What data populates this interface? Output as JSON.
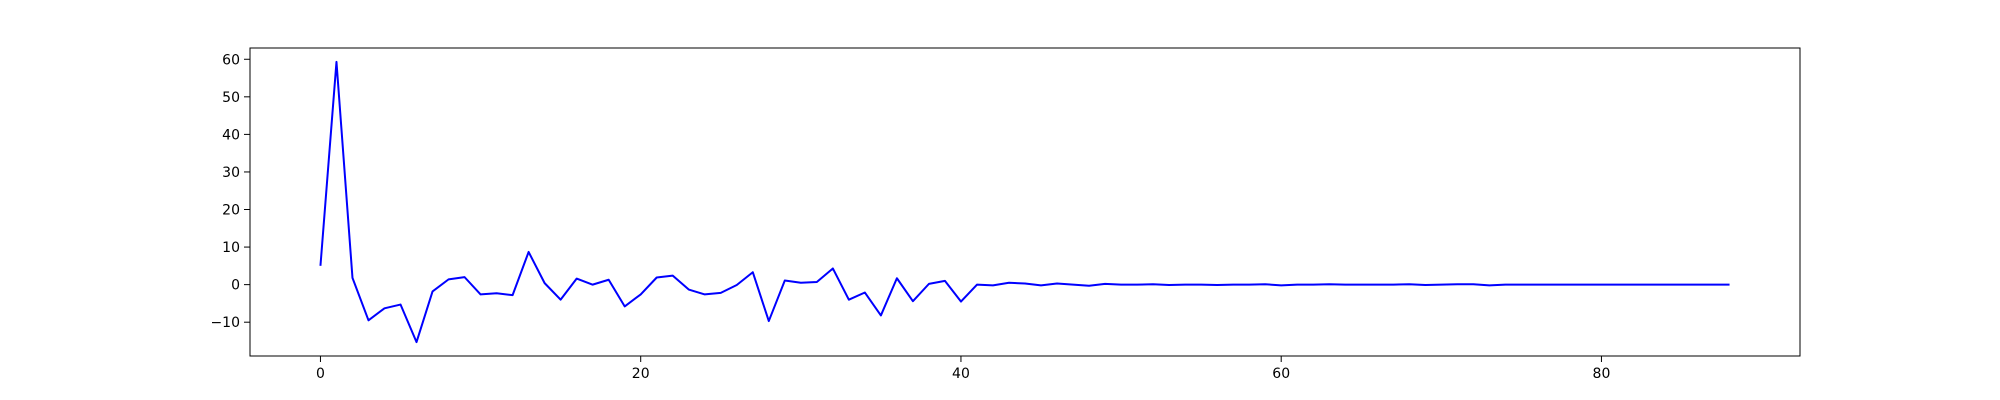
{
  "chart_data": {
    "type": "line",
    "title": "",
    "xlabel": "",
    "ylabel": "",
    "xlim": [
      -4.4,
      92.4
    ],
    "ylim": [
      -19,
      63
    ],
    "xticks": [
      0,
      20,
      40,
      60,
      80
    ],
    "yticks": [
      -10,
      0,
      10,
      20,
      30,
      40,
      50,
      60
    ],
    "grid": false,
    "legend": "none",
    "series": [
      {
        "color": "#0000ff",
        "x": [
          0,
          1,
          2,
          3,
          4,
          5,
          6,
          7,
          8,
          9,
          10,
          11,
          12,
          13,
          14,
          15,
          16,
          17,
          18,
          19,
          20,
          21,
          22,
          23,
          24,
          25,
          26,
          27,
          28,
          29,
          30,
          31,
          32,
          33,
          34,
          35,
          36,
          37,
          38,
          39,
          40,
          41,
          42,
          43,
          44,
          45,
          46,
          47,
          48,
          49,
          50,
          51,
          52,
          53,
          54,
          55,
          56,
          57,
          58,
          59,
          60,
          61,
          62,
          63,
          64,
          65,
          66,
          67,
          68,
          69,
          70,
          71,
          72,
          73,
          74,
          75,
          76,
          77,
          78,
          79,
          80,
          81,
          82,
          83,
          84,
          85,
          86,
          87,
          88
        ],
        "y": [
          5,
          59.3,
          1.8,
          -9.5,
          -6.3,
          -5.3,
          -15.3,
          -1.8,
          1.4,
          2,
          -2.6,
          -2.3,
          -2.8,
          8.7,
          0.4,
          -4,
          1.6,
          0,
          1.3,
          -5.8,
          -2.6,
          1.9,
          2.4,
          -1.3,
          -2.6,
          -2.2,
          -0.1,
          3.3,
          -9.7,
          1.1,
          0.5,
          0.7,
          4.3,
          -4,
          -2.1,
          -8.2,
          1.7,
          -4.4,
          0.2,
          1,
          -4.5,
          0,
          -0.2,
          0.5,
          0.3,
          -0.2,
          0.3,
          0,
          -0.3,
          0.2,
          0,
          0,
          0.1,
          -0.1,
          0,
          0,
          -0.1,
          0,
          0,
          0.1,
          -0.2,
          0,
          0,
          0.1,
          0,
          0,
          0,
          0,
          0.1,
          -0.1,
          0,
          0.1,
          0.1,
          -0.2,
          0,
          0,
          0,
          0,
          0,
          0,
          0,
          0,
          0,
          0,
          0,
          0,
          0,
          0,
          0
        ]
      }
    ]
  }
}
